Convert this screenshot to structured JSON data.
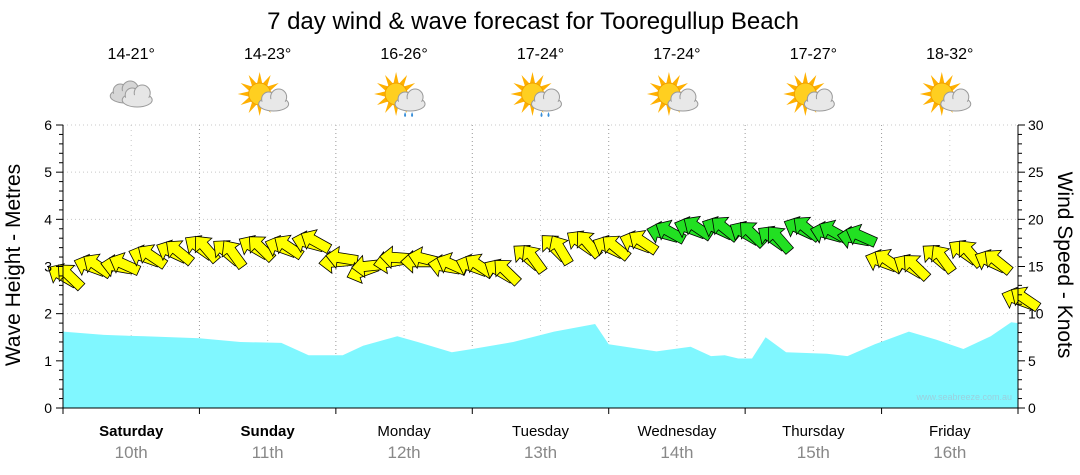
{
  "chart_data": {
    "type": "area",
    "title": "7 day wind & wave forecast for Tooregullup Beach",
    "left_axis": {
      "label": "Wave Height - Metres",
      "ylim": [
        0,
        6
      ],
      "ticks": [
        "0",
        "1",
        "2",
        "3",
        "4",
        "5",
        "6"
      ]
    },
    "right_axis": {
      "label": "Wind Speed - Knots",
      "ylim": [
        0,
        30
      ],
      "ticks": [
        "0",
        "5",
        "10",
        "15",
        "20",
        "25",
        "30"
      ]
    },
    "grid": true,
    "days": [
      {
        "name": "Saturday",
        "date": "10th",
        "bold": true,
        "temp": "14-21°",
        "icon": "cloudy-icon"
      },
      {
        "name": "Sunday",
        "date": "11th",
        "bold": true,
        "temp": "14-23°",
        "icon": "partly-cloudy-icon"
      },
      {
        "name": "Monday",
        "date": "12th",
        "bold": false,
        "temp": "16-26°",
        "icon": "sun-showers-icon"
      },
      {
        "name": "Tuesday",
        "date": "13th",
        "bold": false,
        "temp": "17-24°",
        "icon": "sun-showers-icon"
      },
      {
        "name": "Wednesday",
        "date": "14th",
        "bold": false,
        "temp": "17-24°",
        "icon": "partly-cloudy-icon"
      },
      {
        "name": "Thursday",
        "date": "15th",
        "bold": false,
        "temp": "17-27°",
        "icon": "partly-cloudy-icon"
      },
      {
        "name": "Friday",
        "date": "16th",
        "bold": false,
        "temp": "18-32°",
        "icon": "partly-cloudy-icon"
      }
    ],
    "wave_series": {
      "name": "Wave Height",
      "color": "#80f7ff",
      "x_days": [
        0,
        0.3,
        0.6,
        1.0,
        1.3,
        1.6,
        1.8,
        2.05,
        2.2,
        2.45,
        2.6,
        2.85,
        3.0,
        3.3,
        3.6,
        3.9,
        4.0,
        4.35,
        4.6,
        4.75,
        4.85,
        4.95,
        5.05,
        5.15,
        5.3,
        5.6,
        5.75,
        5.95,
        6.2,
        6.4,
        6.6,
        6.8,
        6.95,
        7.0
      ],
      "values": [
        1.62,
        1.55,
        1.52,
        1.48,
        1.4,
        1.38,
        1.12,
        1.12,
        1.32,
        1.52,
        1.4,
        1.18,
        1.25,
        1.4,
        1.62,
        1.78,
        1.35,
        1.2,
        1.3,
        1.1,
        1.12,
        1.05,
        1.05,
        1.5,
        1.18,
        1.15,
        1.1,
        1.35,
        1.62,
        1.45,
        1.25,
        1.52,
        1.82,
        1.8
      ]
    },
    "wind_series": {
      "name": "Wind Speed",
      "x_days": [
        0,
        0.2,
        0.4,
        0.6,
        0.8,
        1.0,
        1.2,
        1.4,
        1.6,
        1.8,
        2.0,
        2.2,
        2.4,
        2.6,
        2.8,
        3.0,
        3.2,
        3.4,
        3.6,
        3.8,
        4.0,
        4.2,
        4.4,
        4.6,
        4.8,
        5.0,
        5.2,
        5.4,
        5.6,
        5.8,
        6.0,
        6.2,
        6.4,
        6.6,
        6.8,
        7.0
      ],
      "values": [
        14.0,
        15.0,
        15.0,
        16.0,
        16.5,
        17.0,
        16.5,
        17.0,
        17.0,
        17.5,
        15.5,
        14.5,
        15.5,
        15.5,
        15.0,
        15.0,
        14.5,
        16.0,
        17.0,
        17.5,
        17.0,
        17.5,
        18.5,
        19.0,
        19.0,
        18.5,
        18.0,
        19.0,
        18.5,
        18.0,
        15.5,
        15.0,
        16.0,
        16.5,
        15.5,
        11.5
      ],
      "direction_deg": [
        210,
        200,
        190,
        200,
        205,
        215,
        220,
        210,
        200,
        195,
        175,
        160,
        170,
        180,
        190,
        200,
        210,
        220,
        225,
        215,
        205,
        200,
        195,
        200,
        205,
        210,
        215,
        205,
        195,
        190,
        200,
        210,
        220,
        215,
        205,
        200
      ]
    }
  },
  "credit": "www.seabreeze.com.au",
  "colors": {
    "wind_mild": "#ffff00",
    "wind_strong": "#22e022",
    "grid": "#999999"
  }
}
